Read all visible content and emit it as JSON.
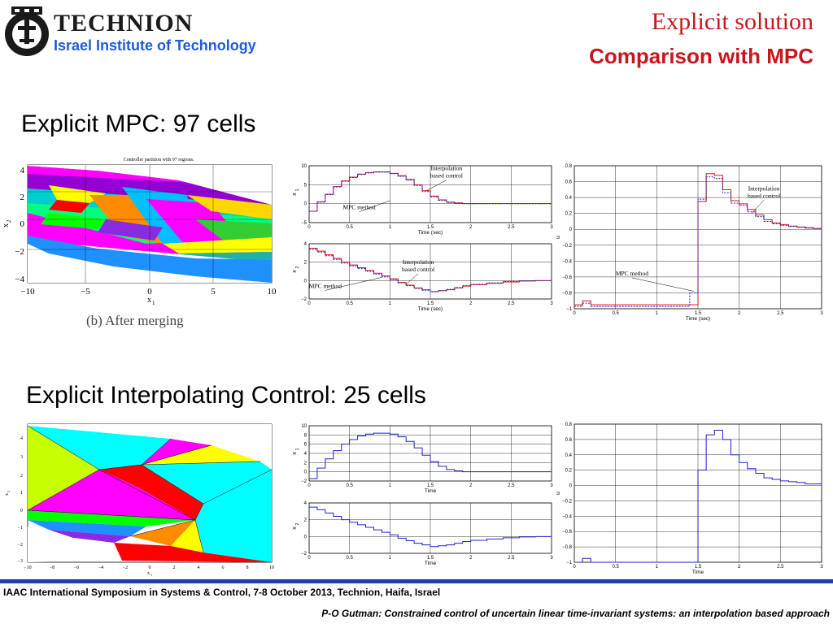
{
  "header": {
    "institution": "TECHNION",
    "institution_sub": "Israel Institute of Technology",
    "title": "Explicit solution",
    "subtitle": "Comparison with MPC"
  },
  "sections": {
    "mpc_heading": "Explicit MPC: 97 cells",
    "interp_heading": "Explicit Interpolating Control: 25 cells"
  },
  "footer": {
    "line1": "IAAC International Symposium in Systems & Control, 7-8 October 2013,  Technion, Haifa, Israel",
    "line2": "P-O Gutman: Constrained control of uncertain linear time-invariant systems: an interpolation based approach"
  },
  "partition_top": {
    "title": "Controller partition with 97 regions.",
    "caption": "(b) After merging",
    "xlabel": "x",
    "xlabel_sub": "1",
    "ylabel": "x",
    "ylabel_sub": "2",
    "xticks": [
      "−10",
      "−5",
      "0",
      "5",
      "10"
    ],
    "yticks": [
      "4",
      "2",
      "0",
      "−2",
      "−4"
    ]
  },
  "partition_bottom": {
    "xlabel": "x",
    "xlabel_sub": "1",
    "ylabel": "x",
    "ylabel_sub": "2",
    "xticks": [
      "−10",
      "−8",
      "−6",
      "−4",
      "−2",
      "0",
      "2",
      "4",
      "6",
      "8",
      "10"
    ],
    "yticks": [
      "4",
      "3",
      "2",
      "1",
      "0",
      "−1",
      "−2",
      "−3",
      "−4"
    ]
  },
  "annotations": {
    "interp": "Interpolation",
    "interp2": "based control",
    "mpc": "MPC method"
  },
  "chart_data": [
    {
      "type": "line",
      "panel": "top-x1",
      "xlabel": "Time (sec)",
      "ylabel": "x",
      "ylabel_sub": "1",
      "xlim": [
        0,
        3
      ],
      "ylim": [
        -5,
        10
      ],
      "xticks": [
        "0",
        "0.5",
        "1",
        "1.5",
        "2",
        "2.5",
        "3"
      ],
      "yticks": [
        "10",
        "5",
        "0",
        "−5"
      ],
      "series": [
        {
          "color": "#e01010",
          "x": [
            0,
            0.1,
            0.2,
            0.3,
            0.4,
            0.5,
            0.6,
            0.7,
            0.8,
            0.9,
            1.0,
            1.1,
            1.2,
            1.3,
            1.4,
            1.5,
            1.6,
            1.7,
            1.8,
            1.9,
            2.0,
            2.5,
            3.0
          ],
          "y": [
            -2,
            0.5,
            2.5,
            4.5,
            6,
            7,
            7.8,
            8.2,
            8.4,
            8.4,
            8,
            7.4,
            6.4,
            5,
            3.4,
            2,
            1,
            0.4,
            0.2,
            0,
            0,
            0,
            0
          ]
        },
        {
          "color": "#2020d0",
          "dashed": true,
          "x": [
            0,
            0.1,
            0.2,
            0.3,
            0.4,
            0.5,
            0.6,
            0.7,
            0.8,
            0.9,
            1.0,
            1.1,
            1.2,
            1.3,
            1.4,
            1.5,
            1.6,
            1.7,
            1.8,
            1.9,
            2.0,
            2.5,
            3.0
          ],
          "y": [
            -2,
            0.4,
            2.4,
            4.4,
            5.9,
            6.9,
            7.7,
            8.1,
            8.3,
            8.3,
            7.9,
            7.2,
            6.2,
            4.8,
            3.2,
            1.8,
            0.9,
            0.3,
            0.1,
            0,
            0,
            0,
            0
          ]
        }
      ]
    },
    {
      "type": "line",
      "panel": "top-x2",
      "xlabel": "Time (sec)",
      "ylabel": "x",
      "ylabel_sub": "2",
      "xlim": [
        0,
        3
      ],
      "ylim": [
        -2,
        4
      ],
      "xticks": [
        "0",
        "0.5",
        "1",
        "1.5",
        "2",
        "2.5",
        "3"
      ],
      "yticks": [
        "4",
        "2",
        "0",
        "−2"
      ],
      "series": [
        {
          "color": "#e01010",
          "x": [
            0,
            0.1,
            0.2,
            0.3,
            0.4,
            0.5,
            0.6,
            0.7,
            0.8,
            0.9,
            1.0,
            1.1,
            1.2,
            1.3,
            1.4,
            1.5,
            1.6,
            1.7,
            1.8,
            1.9,
            2.0,
            2.2,
            2.4,
            2.6,
            2.8,
            3.0
          ],
          "y": [
            3.5,
            3.2,
            2.8,
            2.4,
            2.0,
            1.7,
            1.4,
            1.1,
            0.8,
            0.5,
            0.2,
            -0.2,
            -0.5,
            -0.8,
            -1.0,
            -1.2,
            -1.1,
            -1.0,
            -0.8,
            -0.6,
            -0.45,
            -0.3,
            -0.15,
            -0.05,
            0,
            0
          ]
        },
        {
          "color": "#2020d0",
          "dashed": true,
          "x": [
            0,
            0.1,
            0.2,
            0.3,
            0.4,
            0.5,
            0.6,
            0.7,
            0.8,
            0.9,
            1.0,
            1.1,
            1.2,
            1.3,
            1.4,
            1.5,
            1.6,
            1.7,
            1.8,
            1.9,
            2.0,
            2.2,
            2.4,
            2.6,
            2.8,
            3.0
          ],
          "y": [
            3.4,
            3.1,
            2.7,
            2.3,
            1.9,
            1.6,
            1.3,
            1.0,
            0.7,
            0.4,
            0.1,
            -0.25,
            -0.55,
            -0.85,
            -1.05,
            -1.2,
            -1.1,
            -0.95,
            -0.75,
            -0.55,
            -0.4,
            -0.25,
            -0.1,
            -0.03,
            0,
            0
          ]
        }
      ]
    },
    {
      "type": "line",
      "panel": "top-u",
      "xlabel": "Time (sec)",
      "ylabel": "u",
      "xlim": [
        0,
        3
      ],
      "ylim": [
        -1,
        0.8
      ],
      "xticks": [
        "0",
        "0.5",
        "1",
        "1.5",
        "2",
        "2.5",
        "3"
      ],
      "yticks": [
        "0.8",
        "0.6",
        "0.4",
        "0.2",
        "0",
        "−0.2",
        "−0.4",
        "−0.6",
        "−0.8",
        "−1"
      ],
      "series": [
        {
          "color": "#e01010",
          "x": [
            0,
            0.1,
            0.2,
            0.3,
            0.4,
            0.5,
            1.0,
            1.4,
            1.5,
            1.6,
            1.7,
            1.8,
            1.9,
            2.0,
            2.1,
            2.2,
            2.3,
            2.4,
            2.5,
            2.6,
            2.7,
            2.8,
            2.9,
            3.0
          ],
          "y": [
            -0.95,
            -0.9,
            -0.95,
            -0.95,
            -0.95,
            -0.95,
            -0.95,
            -0.95,
            0.35,
            0.7,
            0.68,
            0.5,
            0.36,
            0.32,
            0.25,
            0.18,
            0.12,
            0.08,
            0.06,
            0.04,
            0.03,
            0.02,
            0.01,
            0
          ]
        },
        {
          "color": "#2020d0",
          "dashed": true,
          "x": [
            0,
            0.1,
            0.2,
            0.3,
            0.4,
            0.5,
            1.0,
            1.4,
            1.5,
            1.6,
            1.7,
            1.8,
            1.9,
            2.0,
            2.1,
            2.2,
            2.3,
            2.4,
            2.5,
            2.6,
            2.7,
            2.8,
            2.9,
            3.0
          ],
          "y": [
            -0.97,
            -0.93,
            -0.97,
            -0.97,
            -0.97,
            -0.97,
            -0.97,
            -0.8,
            0.38,
            0.66,
            0.64,
            0.46,
            0.33,
            0.3,
            0.22,
            0.16,
            0.1,
            0.07,
            0.05,
            0.035,
            0.025,
            0.015,
            0.01,
            0
          ]
        }
      ]
    },
    {
      "type": "line",
      "panel": "bottom-x1",
      "xlabel": "Time",
      "ylabel": "x",
      "ylabel_sub": "1",
      "xlim": [
        0,
        3
      ],
      "ylim": [
        -2,
        10
      ],
      "xticks": [
        "0",
        "0.5",
        "1",
        "1.5",
        "2",
        "2.5",
        "3"
      ],
      "yticks": [
        "10",
        "8",
        "6",
        "4",
        "2",
        "0",
        "−2"
      ],
      "series": [
        {
          "color": "#2020d0",
          "x": [
            0,
            0.1,
            0.2,
            0.3,
            0.4,
            0.5,
            0.6,
            0.7,
            0.8,
            0.9,
            1.0,
            1.1,
            1.2,
            1.3,
            1.4,
            1.5,
            1.6,
            1.7,
            1.8,
            1.9,
            2.0,
            2.5,
            3.0
          ],
          "y": [
            -1.5,
            0.8,
            2.8,
            4.6,
            6,
            7,
            7.8,
            8.2,
            8.4,
            8.4,
            8.2,
            7.6,
            6.6,
            5.2,
            3.6,
            2.2,
            1.2,
            0.5,
            0.2,
            0,
            0,
            0,
            0
          ]
        }
      ]
    },
    {
      "type": "line",
      "panel": "bottom-x2",
      "xlabel": "Time",
      "ylabel": "x",
      "ylabel_sub": "2",
      "xlim": [
        0,
        3
      ],
      "ylim": [
        -2,
        4
      ],
      "xticks": [
        "0",
        "0.5",
        "1",
        "1.5",
        "2",
        "2.5",
        "3"
      ],
      "yticks": [
        "4",
        "2",
        "0",
        "−2"
      ],
      "series": [
        {
          "color": "#2020d0",
          "x": [
            0,
            0.1,
            0.2,
            0.3,
            0.4,
            0.5,
            0.6,
            0.7,
            0.8,
            0.9,
            1.0,
            1.1,
            1.2,
            1.3,
            1.4,
            1.5,
            1.6,
            1.7,
            1.8,
            1.9,
            2.0,
            2.2,
            2.4,
            2.6,
            2.8,
            3.0
          ],
          "y": [
            3.5,
            3.2,
            2.8,
            2.4,
            2.0,
            1.7,
            1.4,
            1.1,
            0.8,
            0.5,
            0.2,
            -0.2,
            -0.5,
            -0.8,
            -1.0,
            -1.2,
            -1.1,
            -1.0,
            -0.8,
            -0.6,
            -0.45,
            -0.3,
            -0.15,
            -0.05,
            0,
            0
          ]
        }
      ]
    },
    {
      "type": "line",
      "panel": "bottom-u",
      "xlabel": "Time",
      "ylabel": "u",
      "xlim": [
        0,
        3
      ],
      "ylim": [
        -1,
        0.8
      ],
      "xticks": [
        "0",
        "0.5",
        "1",
        "1.5",
        "2",
        "2.5",
        "3"
      ],
      "yticks": [
        "0.8",
        "0.6",
        "0.4",
        "0.2",
        "0",
        "−0.2",
        "−0.4",
        "−0.6",
        "−0.8",
        "−1"
      ],
      "series": [
        {
          "color": "#2020d0",
          "x": [
            0,
            0.1,
            0.2,
            0.3,
            0.4,
            0.5,
            1.0,
            1.4,
            1.5,
            1.6,
            1.7,
            1.8,
            1.9,
            2.0,
            2.1,
            2.2,
            2.3,
            2.4,
            2.5,
            2.6,
            2.7,
            2.8,
            2.9,
            3.0
          ],
          "y": [
            -1,
            -0.95,
            -1,
            -1,
            -1,
            -1,
            -1,
            -1,
            0.2,
            0.66,
            0.72,
            0.6,
            0.4,
            0.3,
            0.22,
            0.16,
            0.1,
            0.08,
            0.06,
            0.05,
            0.04,
            0.02,
            0.02,
            0
          ]
        }
      ]
    }
  ]
}
